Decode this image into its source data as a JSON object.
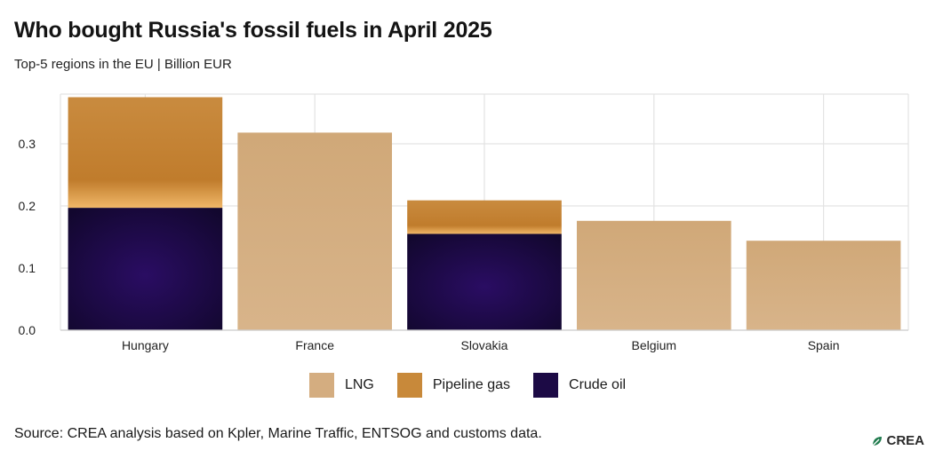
{
  "header": {
    "title": "Who bought Russia's fossil fuels in April 2025",
    "subtitle": "Top-5 regions in the EU | Billion EUR"
  },
  "footer": {
    "source": "Source: CREA analysis based on Kpler, Marine Traffic, ENTSOG and customs data.",
    "logo_text": "CREA"
  },
  "colors": {
    "lng": "#d4ad80",
    "pipeline_gas": "#c8893a",
    "crude_oil": "#1c0a45",
    "grid": "#e3e3e3"
  },
  "chart_data": {
    "type": "bar",
    "stacked": true,
    "title": "Who bought Russia's fossil fuels in April 2025",
    "subtitle": "Top-5 regions in the EU | Billion EUR",
    "xlabel": "",
    "ylabel": "",
    "ylim": [
      0,
      0.38
    ],
    "yticks": [
      0.0,
      0.1,
      0.2,
      0.3
    ],
    "categories": [
      "Hungary",
      "France",
      "Slovakia",
      "Belgium",
      "Spain"
    ],
    "series": [
      {
        "name": "Crude oil",
        "values": [
          0.197,
          0,
          0.155,
          0,
          0
        ]
      },
      {
        "name": "Pipeline gas",
        "values": [
          0.178,
          0,
          0.054,
          0,
          0
        ]
      },
      {
        "name": "LNG",
        "values": [
          0,
          0.318,
          0,
          0.176,
          0.144
        ]
      }
    ],
    "legend": [
      "LNG",
      "Pipeline gas",
      "Crude oil"
    ],
    "legend_position": "bottom",
    "grid": true
  }
}
